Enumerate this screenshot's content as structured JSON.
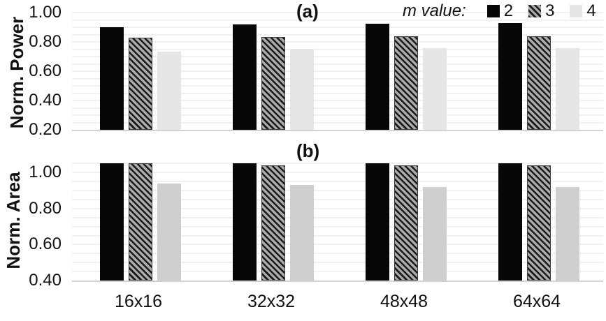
{
  "figure": {
    "panel_a_label": "(a)",
    "panel_b_label": "(b)"
  },
  "legend": {
    "title": "m value:",
    "entries": [
      {
        "label": "2",
        "pattern": "solid",
        "color": "#070707"
      },
      {
        "label": "3",
        "pattern": "hatch",
        "color": "#ababab",
        "stripe_color": "#1a1a1a"
      },
      {
        "label": "4",
        "pattern": "solid",
        "color": "#e6e6e6"
      }
    ]
  },
  "chart_data": [
    {
      "type": "bar",
      "panel_label": "(a)",
      "ylabel": "Norm. Power",
      "xlabel": "",
      "categories": [
        "16x16",
        "32x32",
        "48x48",
        "64x64"
      ],
      "series": [
        {
          "name": "2",
          "pattern": "solid",
          "color": "#070707",
          "values": [
            0.9,
            0.92,
            0.925,
            0.93
          ]
        },
        {
          "name": "3",
          "pattern": "hatch",
          "color": "#ababab",
          "stripe_color": "#1a1a1a",
          "values": [
            0.83,
            0.835,
            0.84,
            0.84
          ]
        },
        {
          "name": "4",
          "pattern": "solid",
          "color": "#e6e6e6",
          "values": [
            0.735,
            0.755,
            0.76,
            0.76
          ]
        }
      ],
      "ylim": [
        0.2,
        1.025
      ],
      "yticks": [
        "0.20",
        "0.40",
        "0.60",
        "0.80",
        "1.00"
      ],
      "ygrid_step": 0.05,
      "grid": true,
      "show_x_labels": false,
      "legend_position": "top-right"
    },
    {
      "type": "bar",
      "panel_label": "(b)",
      "ylabel": "Norm. Area",
      "xlabel": "",
      "categories": [
        "16x16",
        "32x32",
        "48x48",
        "64x64"
      ],
      "series": [
        {
          "name": "2",
          "pattern": "solid",
          "color": "#070707",
          "values": [
            1.05,
            1.05,
            1.05,
            1.05
          ]
        },
        {
          "name": "3",
          "pattern": "hatch",
          "color": "#ababab",
          "stripe_color": "#1a1a1a",
          "values": [
            1.05,
            1.04,
            1.04,
            1.04
          ]
        },
        {
          "name": "4",
          "pattern": "solid",
          "color": "#cfcfcf",
          "values": [
            0.94,
            0.93,
            0.92,
            0.92
          ]
        }
      ],
      "ylim": [
        0.4,
        1.075
      ],
      "yticks": [
        "0.40",
        "0.60",
        "0.80",
        "1.00"
      ],
      "ygrid_step": 0.05,
      "grid": true,
      "show_x_labels": true,
      "legend_position": "none"
    }
  ],
  "colors": {
    "gridline": "#f1f1f1",
    "axis_line": "#d2d2d2",
    "text": "#111111",
    "background": "#ffffff"
  }
}
